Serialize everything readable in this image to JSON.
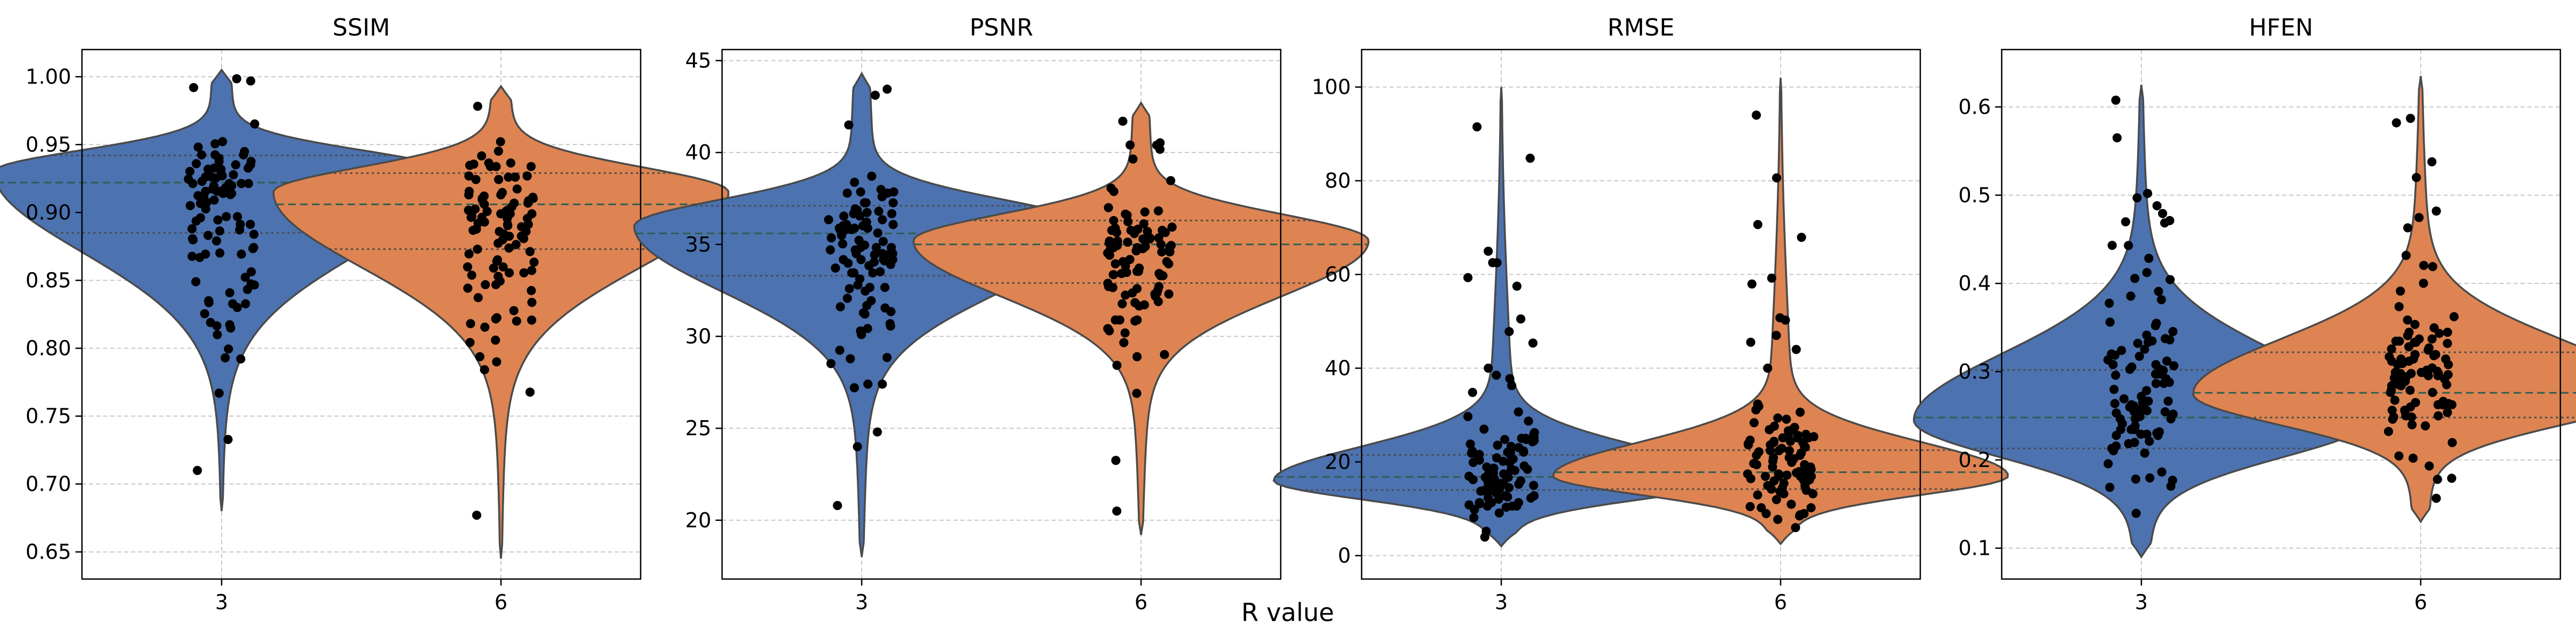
{
  "figure": {
    "xlabel": "R value"
  },
  "colors": {
    "r3": "#4C72B0",
    "r6": "#DD8452",
    "edge": "#4a4a4a",
    "grid": "#c8c8c8",
    "point": "#000000",
    "median": "#2f5e50"
  },
  "chart_data": [
    {
      "type": "violin",
      "title": "SSIM",
      "categories": [
        "3",
        "6"
      ],
      "ylim": [
        0.63,
        1.02
      ],
      "yticks": [
        0.65,
        0.7,
        0.75,
        0.8,
        0.85,
        0.9,
        0.95,
        1.0
      ],
      "decimals": 2,
      "grid": true,
      "series": [
        {
          "category": "3",
          "min": 0.68,
          "max": 1.005,
          "q1": 0.885,
          "median": 0.922,
          "q3": 0.942,
          "mode": 0.93,
          "n": 95,
          "outliers": [
            0.71,
            0.81,
            0.83,
            0.835
          ]
        },
        {
          "category": "6",
          "min": 0.645,
          "max": 0.993,
          "q1": 0.873,
          "median": 0.906,
          "q3": 0.929,
          "mode": 0.915,
          "n": 95,
          "outliers": [
            0.677,
            0.79,
            0.82
          ]
        }
      ]
    },
    {
      "type": "violin",
      "title": "PSNR",
      "categories": [
        "3",
        "6"
      ],
      "ylim": [
        16.8,
        45.6
      ],
      "yticks": [
        20,
        25,
        30,
        35,
        40,
        45
      ],
      "decimals": 0,
      "grid": true,
      "series": [
        {
          "category": "3",
          "min": 18.0,
          "max": 44.3,
          "q1": 33.3,
          "median": 35.6,
          "q3": 37.1,
          "mode": 36.0,
          "n": 95,
          "outliers": [
            20.8,
            24.0,
            24.8,
            41.5
          ]
        },
        {
          "category": "6",
          "min": 19.2,
          "max": 42.7,
          "q1": 32.9,
          "median": 35.0,
          "q3": 36.3,
          "mode": 35.2,
          "n": 95,
          "outliers": [
            20.5,
            26.9,
            40.4
          ]
        }
      ]
    },
    {
      "type": "violin",
      "title": "RMSE",
      "categories": [
        "3",
        "6"
      ],
      "ylim": [
        -5,
        108
      ],
      "yticks": [
        0,
        20,
        40,
        60,
        80,
        100
      ],
      "decimals": 0,
      "grid": true,
      "series": [
        {
          "category": "3",
          "min": 2.0,
          "max": 100.0,
          "q1": 14.0,
          "median": 16.8,
          "q3": 21.5,
          "mode": 16.0,
          "n": 95,
          "outliers": [
            91.5,
            62.5,
            57.5,
            40.0
          ]
        },
        {
          "category": "6",
          "min": 2.5,
          "max": 102.0,
          "q1": 14.2,
          "median": 17.8,
          "q3": 22.5,
          "mode": 17.0,
          "n": 95,
          "outliers": [
            94.0,
            47.0,
            44.0,
            40.0
          ]
        }
      ]
    },
    {
      "type": "violin",
      "title": "HFEN",
      "categories": [
        "3",
        "6"
      ],
      "ylim": [
        0.065,
        0.665
      ],
      "yticks": [
        0.1,
        0.2,
        0.3,
        0.4,
        0.5,
        0.6
      ],
      "decimals": 1,
      "grid": true,
      "series": [
        {
          "category": "3",
          "min": 0.09,
          "max": 0.625,
          "q1": 0.213,
          "median": 0.248,
          "q3": 0.302,
          "mode": 0.245,
          "n": 95,
          "outliers": [
            0.565,
            0.497,
            0.488,
            0.443
          ]
        },
        {
          "category": "6",
          "min": 0.13,
          "max": 0.635,
          "q1": 0.248,
          "median": 0.276,
          "q3": 0.322,
          "mode": 0.275,
          "n": 95,
          "outliers": [
            0.582,
            0.52,
            0.482,
            0.463
          ]
        }
      ]
    }
  ]
}
